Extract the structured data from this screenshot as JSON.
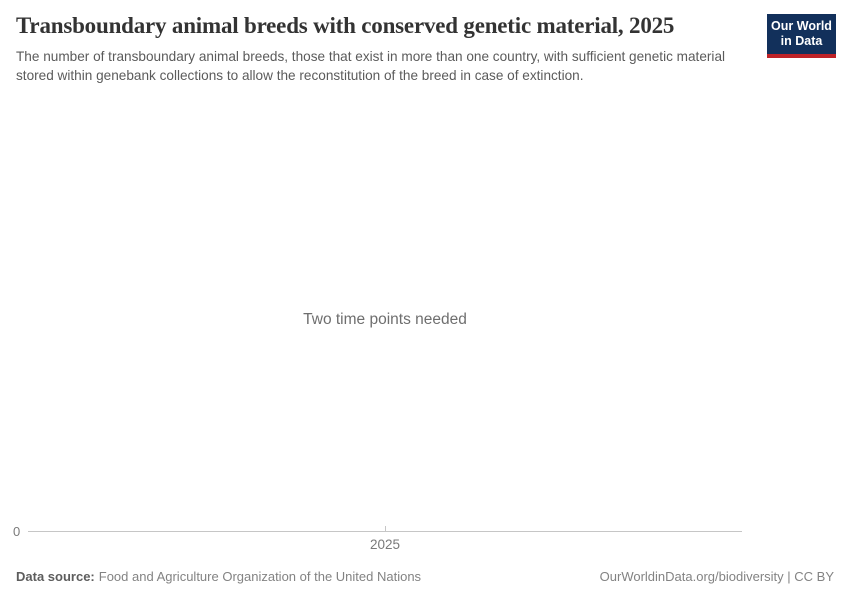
{
  "header": {
    "title": "Transboundary animal breeds with conserved genetic material, 2025",
    "subtitle": "The number of transboundary animal breeds, those that exist in more than one country, with sufficient genetic material stored within genebank collections to allow the reconstitution of the breed in case of extinction."
  },
  "logo": {
    "line1": "Our World",
    "line2": "in Data"
  },
  "chart": {
    "empty_message": "Two time points needed",
    "y_axis_zero_label": "0",
    "x_tick_label": "2025"
  },
  "chart_data": {
    "type": "line",
    "title": "Transboundary animal breeds with conserved genetic material, 2025",
    "series": [],
    "x_ticks": [
      "2025"
    ],
    "y_ticks": [
      "0"
    ],
    "xlabel": "",
    "ylabel": "",
    "grid": false,
    "legend": false,
    "has_data": false,
    "annotations": [
      "Two time points needed"
    ]
  },
  "footer": {
    "source_label": "Data source:",
    "source_value": "Food and Agriculture Organization of the United Nations",
    "attribution": "OurWorldinData.org/biodiversity | CC BY"
  },
  "colors": {
    "page_background": "#ffffff",
    "title": "#333333",
    "subtitle": "#5b5b5b",
    "message": "#6e6e6e",
    "axis_label": "#7a7a7a",
    "axis_line": "#c6c6c6",
    "logo_background": "#12305b",
    "logo_accent_red": "#be2227",
    "footer_text": "#838383",
    "footer_label": "#5d5d5d"
  }
}
